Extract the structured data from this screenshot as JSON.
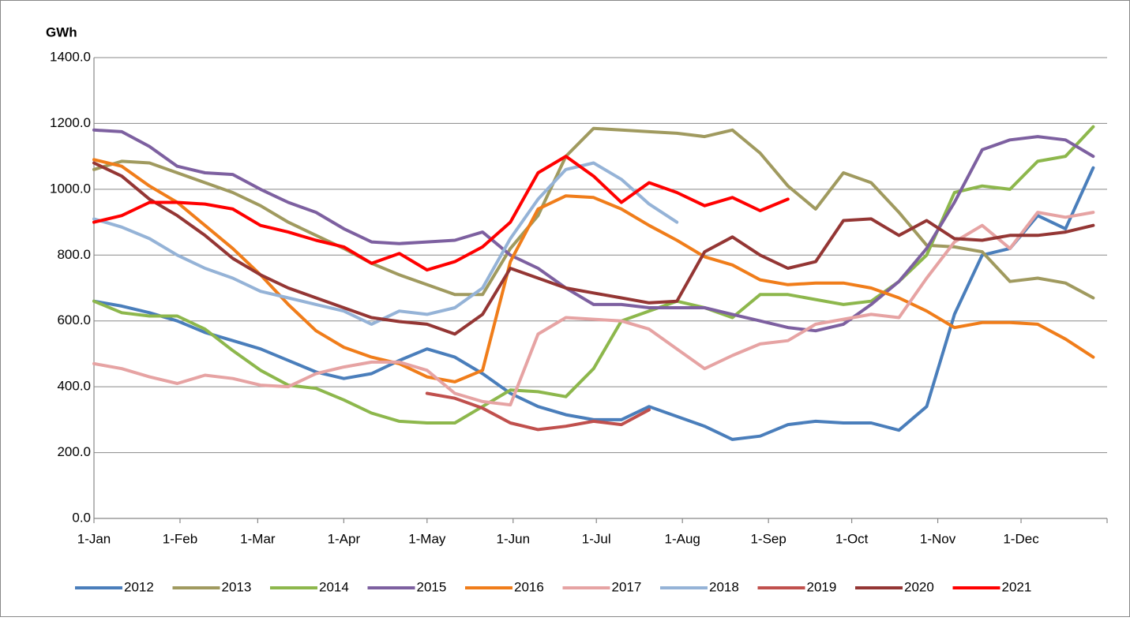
{
  "chart_data": {
    "type": "line",
    "y_label": "GWh",
    "x": [
      1,
      11,
      21,
      31,
      41,
      51,
      61,
      71,
      81,
      91,
      101,
      111,
      121,
      131,
      141,
      151,
      161,
      171,
      181,
      191,
      201,
      211,
      221,
      231,
      241,
      251,
      261,
      271,
      281,
      291,
      301,
      311,
      321,
      331,
      341,
      351,
      361
    ],
    "xlim": [
      1,
      366
    ],
    "xticks": [
      {
        "value": 1,
        "label": "1-Jan"
      },
      {
        "value": 32,
        "label": "1-Feb"
      },
      {
        "value": 60,
        "label": "1-Mar"
      },
      {
        "value": 91,
        "label": "1-Apr"
      },
      {
        "value": 121,
        "label": "1-May"
      },
      {
        "value": 152,
        "label": "1-Jun"
      },
      {
        "value": 182,
        "label": "1-Jul"
      },
      {
        "value": 213,
        "label": "1-Aug"
      },
      {
        "value": 244,
        "label": "1-Sep"
      },
      {
        "value": 274,
        "label": "1-Oct"
      },
      {
        "value": 305,
        "label": "1-Nov"
      },
      {
        "value": 335,
        "label": "1-Dec"
      }
    ],
    "ylim": [
      0,
      1400
    ],
    "yticks": [
      {
        "value": 0,
        "label": "0.0"
      },
      {
        "value": 200,
        "label": "200.0"
      },
      {
        "value": 400,
        "label": "400.0"
      },
      {
        "value": 600,
        "label": "600.0"
      },
      {
        "value": 800,
        "label": "800.0"
      },
      {
        "value": 1000,
        "label": "1000.0"
      },
      {
        "value": 1200,
        "label": "1200.0"
      },
      {
        "value": 1400,
        "label": "1400.0"
      }
    ],
    "grid": true,
    "legend": "bottom",
    "series": [
      {
        "name": "2012",
        "color": "#4a7ebb",
        "values": [
          660,
          645,
          625,
          600,
          565,
          540,
          515,
          480,
          445,
          425,
          440,
          480,
          515,
          490,
          440,
          380,
          340,
          315,
          300,
          300,
          340,
          310,
          280,
          240,
          250,
          285,
          295,
          290,
          290,
          268,
          340,
          620,
          800,
          820,
          920,
          880,
          1065
        ]
      },
      {
        "name": "2013",
        "color": "#a09a5f",
        "values": [
          1060,
          1085,
          1080,
          1050,
          1020,
          990,
          950,
          900,
          860,
          820,
          775,
          740,
          710,
          680,
          680,
          820,
          920,
          1100,
          1185,
          1180,
          1175,
          1170,
          1160,
          1180,
          1110,
          1010,
          940,
          1050,
          1020,
          930,
          830,
          825,
          810,
          720,
          730,
          715,
          670
        ]
      },
      {
        "name": "2014",
        "color": "#8db74c",
        "values": [
          660,
          625,
          615,
          615,
          575,
          510,
          450,
          405,
          395,
          360,
          320,
          295,
          290,
          290,
          340,
          390,
          385,
          370,
          455,
          600,
          630,
          660,
          640,
          610,
          680,
          680,
          665,
          650,
          660,
          720,
          800,
          990,
          1010,
          1000,
          1085,
          1100,
          1190
        ]
      },
      {
        "name": "2015",
        "color": "#7d60a0",
        "values": [
          1180,
          1175,
          1130,
          1070,
          1050,
          1045,
          1000,
          960,
          930,
          880,
          840,
          835,
          840,
          845,
          870,
          800,
          760,
          700,
          650,
          650,
          640,
          640,
          640,
          620,
          600,
          580,
          570,
          590,
          650,
          720,
          820,
          960,
          1120,
          1150,
          1160,
          1150,
          1100
        ]
      },
      {
        "name": "2016",
        "color": "#f07d1a",
        "values": [
          1090,
          1070,
          1010,
          960,
          890,
          820,
          740,
          650,
          570,
          520,
          490,
          470,
          430,
          415,
          450,
          780,
          940,
          980,
          975,
          940,
          890,
          845,
          795,
          770,
          725,
          710,
          715,
          715,
          700,
          670,
          630,
          580,
          595,
          595,
          590,
          545,
          490
        ]
      },
      {
        "name": "2017",
        "color": "#e6a3a3",
        "values": [
          470,
          455,
          430,
          410,
          435,
          425,
          405,
          400,
          440,
          460,
          475,
          475,
          450,
          380,
          355,
          345,
          560,
          610,
          605,
          600,
          575,
          515,
          455,
          495,
          530,
          540,
          590,
          605,
          620,
          610,
          730,
          840,
          890,
          820,
          930,
          915,
          930
        ]
      },
      {
        "name": "2018",
        "color": "#95b3d7",
        "values": [
          910,
          885,
          850,
          800,
          760,
          730,
          690,
          670,
          650,
          630,
          590,
          630,
          620,
          640,
          700,
          850,
          970,
          1060,
          1080,
          1030,
          955,
          900,
          null,
          null,
          null,
          null,
          null,
          null,
          null,
          null,
          null,
          null,
          null,
          null,
          null,
          null,
          null
        ]
      },
      {
        "name": "2019",
        "color": "#c0504d",
        "values": [
          null,
          null,
          null,
          null,
          null,
          null,
          null,
          null,
          null,
          null,
          null,
          null,
          380,
          365,
          335,
          290,
          270,
          280,
          295,
          285,
          330,
          null,
          null,
          null,
          null,
          null,
          null,
          null,
          null,
          null,
          null,
          null,
          null,
          null,
          null,
          null,
          null
        ]
      },
      {
        "name": "2020",
        "color": "#943634",
        "values": [
          1080,
          1040,
          970,
          920,
          860,
          790,
          740,
          700,
          670,
          640,
          610,
          598,
          590,
          560,
          620,
          760,
          730,
          700,
          685,
          670,
          655,
          660,
          810,
          855,
          800,
          760,
          780,
          905,
          910,
          860,
          905,
          850,
          845,
          860,
          860,
          870,
          890
        ]
      },
      {
        "name": "2021",
        "color": "#ff0000",
        "values": [
          900,
          920,
          960,
          960,
          955,
          940,
          890,
          870,
          845,
          825,
          775,
          805,
          755,
          780,
          825,
          900,
          1050,
          1100,
          1040,
          960,
          1020,
          990,
          950,
          975,
          935,
          970,
          null,
          null,
          null,
          null,
          null,
          null,
          null,
          null,
          null,
          null,
          null
        ]
      }
    ]
  }
}
